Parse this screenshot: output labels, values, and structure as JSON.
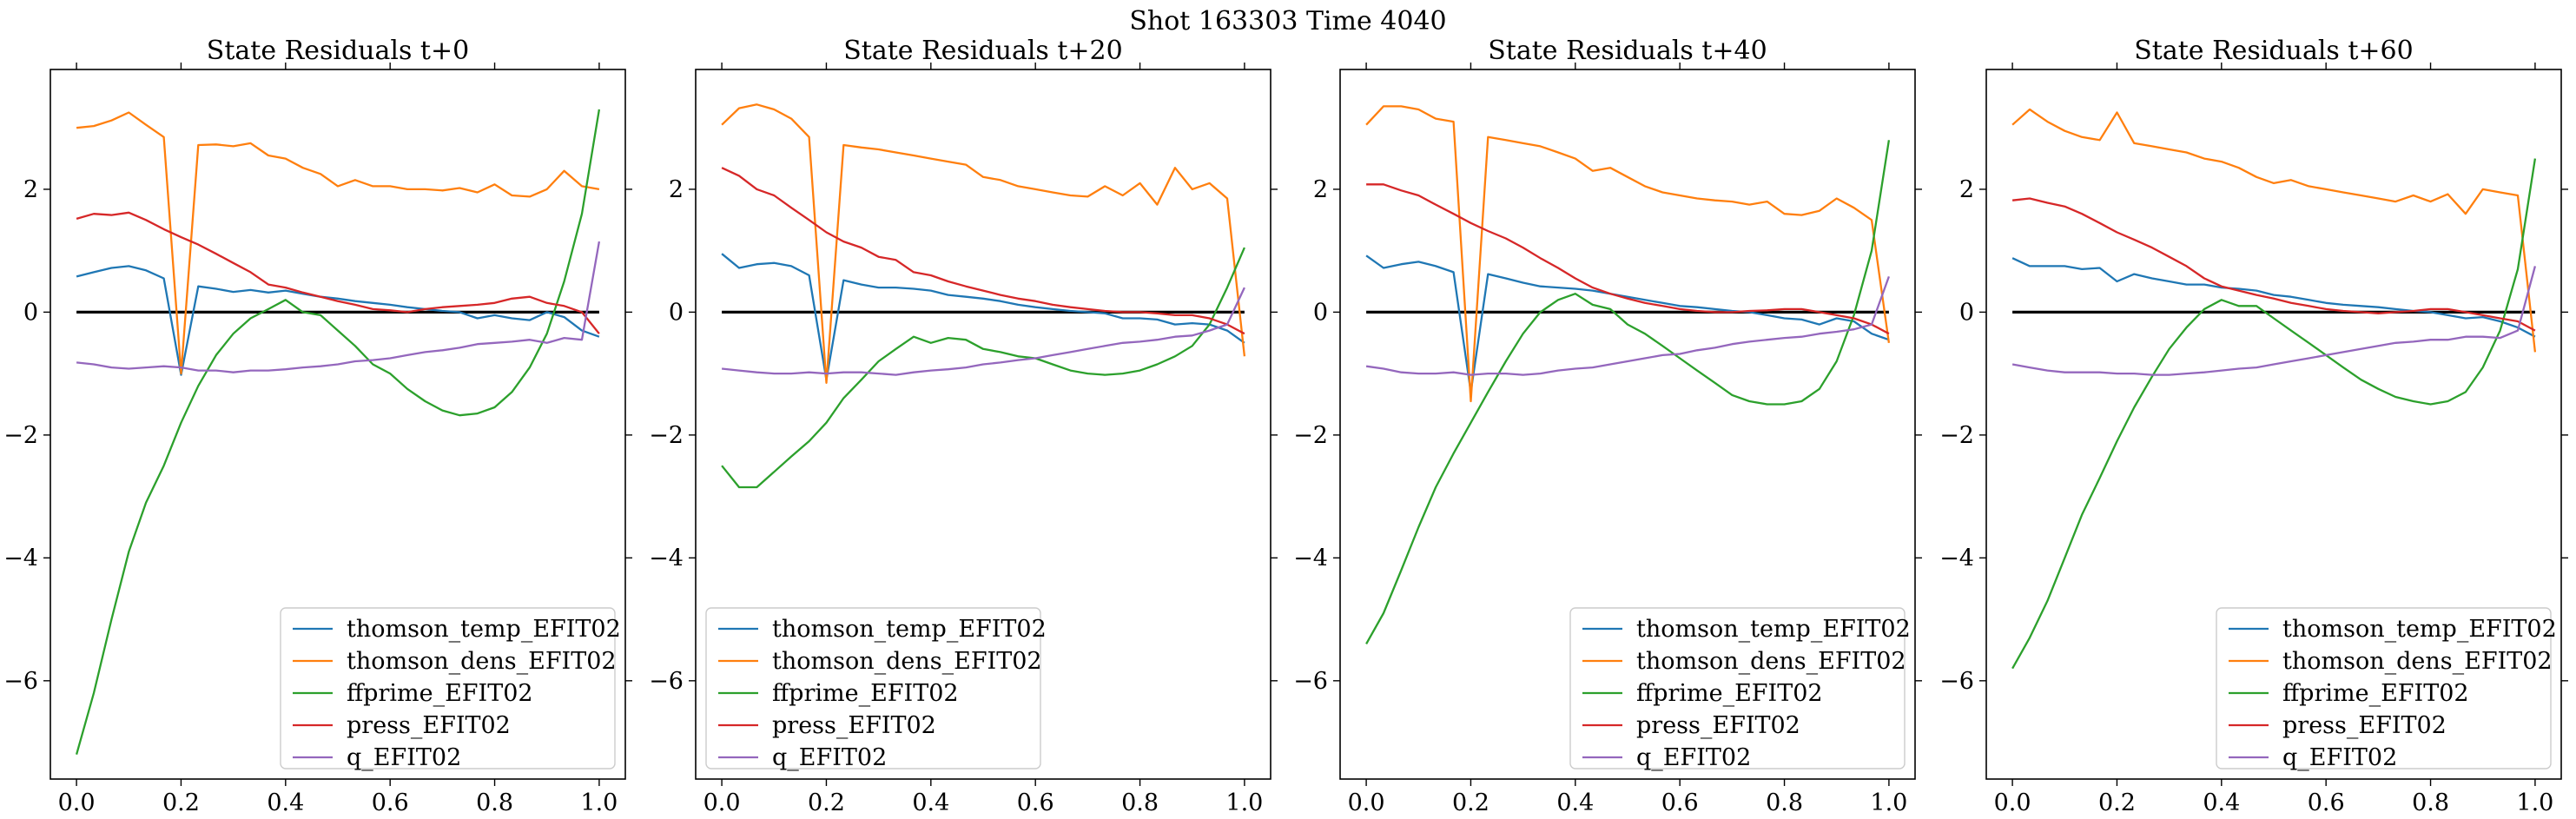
{
  "suptitle": "Shot 163303   Time 4040",
  "colors": {
    "thomson_temp_EFIT02": "#1f77b4",
    "thomson_dens_EFIT02": "#ff7f0e",
    "ffprime_EFIT02": "#2ca02c",
    "press_EFIT02": "#d62728",
    "q_EFIT02": "#9467bd",
    "zero_line": "#000000"
  },
  "chart_data": [
    {
      "type": "line",
      "title": "State Residuals t+0",
      "xlim": [
        -0.05,
        1.05
      ],
      "ylim": [
        -7.6,
        3.95
      ],
      "xticks": [
        0.0,
        0.2,
        0.4,
        0.6,
        0.8,
        1.0
      ],
      "xtick_labels": [
        "0.0",
        "0.2",
        "0.4",
        "0.6",
        "0.8",
        "1.0"
      ],
      "yticks": [
        -6,
        -4,
        -2,
        0,
        2
      ],
      "ytick_labels": [
        "−6",
        "−4",
        "−2",
        "0",
        "2"
      ],
      "legend_position": "lower-right",
      "hline": 0,
      "x": [
        0.0,
        0.033,
        0.067,
        0.1,
        0.133,
        0.167,
        0.2,
        0.233,
        0.267,
        0.3,
        0.333,
        0.367,
        0.4,
        0.433,
        0.467,
        0.5,
        0.533,
        0.567,
        0.6,
        0.633,
        0.667,
        0.7,
        0.733,
        0.767,
        0.8,
        0.833,
        0.867,
        0.9,
        0.933,
        0.967,
        1.0
      ],
      "series": [
        {
          "name": "thomson_temp_EFIT02",
          "values": [
            0.58,
            0.65,
            0.72,
            0.75,
            0.68,
            0.55,
            -1.02,
            0.42,
            0.38,
            0.33,
            0.36,
            0.32,
            0.35,
            0.3,
            0.25,
            0.22,
            0.18,
            0.15,
            0.12,
            0.08,
            0.05,
            0.02,
            0.0,
            -0.1,
            -0.05,
            -0.1,
            -0.13,
            0.0,
            -0.08,
            -0.3,
            -0.4
          ]
        },
        {
          "name": "thomson_dens_EFIT02",
          "values": [
            3.0,
            3.03,
            3.12,
            3.25,
            3.05,
            2.85,
            -1.0,
            2.72,
            2.73,
            2.7,
            2.75,
            2.55,
            2.5,
            2.35,
            2.25,
            2.05,
            2.15,
            2.05,
            2.05,
            2.0,
            2.0,
            1.98,
            2.02,
            1.95,
            2.08,
            1.9,
            1.88,
            2.0,
            2.3,
            2.05,
            2.0
          ]
        },
        {
          "name": "ffprime_EFIT02",
          "values": [
            -7.2,
            -6.2,
            -5.0,
            -3.9,
            -3.1,
            -2.5,
            -1.8,
            -1.2,
            -0.7,
            -0.35,
            -0.1,
            0.05,
            0.2,
            0.0,
            -0.05,
            -0.3,
            -0.55,
            -0.85,
            -1.0,
            -1.25,
            -1.45,
            -1.6,
            -1.68,
            -1.65,
            -1.55,
            -1.3,
            -0.9,
            -0.35,
            0.5,
            1.6,
            3.3
          ]
        },
        {
          "name": "press_EFIT02",
          "values": [
            1.52,
            1.6,
            1.58,
            1.62,
            1.5,
            1.35,
            1.22,
            1.1,
            0.95,
            0.8,
            0.65,
            0.45,
            0.4,
            0.32,
            0.25,
            0.18,
            0.12,
            0.05,
            0.03,
            0.0,
            0.05,
            0.08,
            0.1,
            0.12,
            0.15,
            0.22,
            0.25,
            0.15,
            0.1,
            0.0,
            -0.35
          ]
        },
        {
          "name": "q_EFIT02",
          "values": [
            -0.82,
            -0.85,
            -0.9,
            -0.92,
            -0.9,
            -0.88,
            -0.9,
            -0.95,
            -0.95,
            -0.98,
            -0.95,
            -0.95,
            -0.93,
            -0.9,
            -0.88,
            -0.85,
            -0.8,
            -0.78,
            -0.75,
            -0.7,
            -0.65,
            -0.62,
            -0.58,
            -0.52,
            -0.5,
            -0.48,
            -0.45,
            -0.5,
            -0.42,
            -0.45,
            1.15
          ]
        }
      ]
    },
    {
      "type": "line",
      "title": "State Residuals t+20",
      "xlim": [
        -0.05,
        1.05
      ],
      "ylim": [
        -7.6,
        3.95
      ],
      "xticks": [
        0.0,
        0.2,
        0.4,
        0.6,
        0.8,
        1.0
      ],
      "xtick_labels": [
        "0.0",
        "0.2",
        "0.4",
        "0.6",
        "0.8",
        "1.0"
      ],
      "yticks": [
        -6,
        -4,
        -2,
        0,
        2
      ],
      "ytick_labels": [
        "−6",
        "−4",
        "−2",
        "0",
        "2"
      ],
      "legend_position": "lower-left",
      "hline": 0,
      "x": [
        0.0,
        0.033,
        0.067,
        0.1,
        0.133,
        0.167,
        0.2,
        0.233,
        0.267,
        0.3,
        0.333,
        0.367,
        0.4,
        0.433,
        0.467,
        0.5,
        0.533,
        0.567,
        0.6,
        0.633,
        0.667,
        0.7,
        0.733,
        0.767,
        0.8,
        0.833,
        0.867,
        0.9,
        0.933,
        0.967,
        1.0
      ],
      "series": [
        {
          "name": "thomson_temp_EFIT02",
          "values": [
            0.95,
            0.72,
            0.78,
            0.8,
            0.75,
            0.6,
            -1.1,
            0.52,
            0.45,
            0.4,
            0.4,
            0.38,
            0.35,
            0.28,
            0.25,
            0.22,
            0.18,
            0.12,
            0.08,
            0.05,
            0.02,
            0.0,
            -0.02,
            -0.1,
            -0.1,
            -0.12,
            -0.2,
            -0.18,
            -0.2,
            -0.3,
            -0.5
          ]
        },
        {
          "name": "thomson_dens_EFIT02",
          "values": [
            3.05,
            3.32,
            3.38,
            3.3,
            3.15,
            2.85,
            -1.15,
            2.72,
            2.68,
            2.65,
            2.6,
            2.55,
            2.5,
            2.45,
            2.4,
            2.2,
            2.15,
            2.05,
            2.0,
            1.95,
            1.9,
            1.88,
            2.05,
            1.9,
            2.1,
            1.75,
            2.35,
            2.0,
            2.1,
            1.85,
            -0.72
          ]
        },
        {
          "name": "ffprime_EFIT02",
          "values": [
            -2.5,
            -2.85,
            -2.85,
            -2.6,
            -2.35,
            -2.1,
            -1.8,
            -1.4,
            -1.1,
            -0.8,
            -0.6,
            -0.4,
            -0.5,
            -0.42,
            -0.45,
            -0.6,
            -0.65,
            -0.72,
            -0.75,
            -0.85,
            -0.95,
            -1.0,
            -1.02,
            -1.0,
            -0.95,
            -0.85,
            -0.72,
            -0.55,
            -0.2,
            0.4,
            1.05
          ]
        },
        {
          "name": "press_EFIT02",
          "values": [
            2.35,
            2.22,
            2.0,
            1.9,
            1.7,
            1.5,
            1.3,
            1.15,
            1.05,
            0.9,
            0.85,
            0.65,
            0.6,
            0.5,
            0.42,
            0.35,
            0.28,
            0.22,
            0.18,
            0.12,
            0.08,
            0.05,
            0.02,
            0.0,
            0.0,
            -0.02,
            -0.05,
            -0.05,
            -0.1,
            -0.2,
            -0.35
          ]
        },
        {
          "name": "q_EFIT02",
          "values": [
            -0.92,
            -0.95,
            -0.98,
            -1.0,
            -1.0,
            -0.98,
            -1.0,
            -0.98,
            -0.98,
            -1.0,
            -1.02,
            -0.98,
            -0.95,
            -0.93,
            -0.9,
            -0.85,
            -0.82,
            -0.78,
            -0.75,
            -0.7,
            -0.65,
            -0.6,
            -0.55,
            -0.5,
            -0.48,
            -0.45,
            -0.4,
            -0.38,
            -0.3,
            -0.2,
            0.4
          ]
        }
      ]
    },
    {
      "type": "line",
      "title": "State Residuals t+40",
      "xlim": [
        -0.05,
        1.05
      ],
      "ylim": [
        -7.6,
        3.95
      ],
      "xticks": [
        0.0,
        0.2,
        0.4,
        0.6,
        0.8,
        1.0
      ],
      "xtick_labels": [
        "0.0",
        "0.2",
        "0.4",
        "0.6",
        "0.8",
        "1.0"
      ],
      "yticks": [
        -6,
        -4,
        -2,
        0,
        2
      ],
      "ytick_labels": [
        "−6",
        "−4",
        "−2",
        "0",
        "2"
      ],
      "legend_position": "lower-right",
      "hline": 0,
      "x": [
        0.0,
        0.033,
        0.067,
        0.1,
        0.133,
        0.167,
        0.2,
        0.233,
        0.267,
        0.3,
        0.333,
        0.367,
        0.4,
        0.433,
        0.467,
        0.5,
        0.533,
        0.567,
        0.6,
        0.633,
        0.667,
        0.7,
        0.733,
        0.767,
        0.8,
        0.833,
        0.867,
        0.9,
        0.933,
        0.967,
        1.0
      ],
      "series": [
        {
          "name": "thomson_temp_EFIT02",
          "values": [
            0.92,
            0.72,
            0.78,
            0.82,
            0.75,
            0.65,
            -1.3,
            0.62,
            0.55,
            0.48,
            0.42,
            0.4,
            0.38,
            0.35,
            0.3,
            0.25,
            0.2,
            0.15,
            0.1,
            0.08,
            0.05,
            0.02,
            0.0,
            -0.05,
            -0.1,
            -0.12,
            -0.2,
            -0.1,
            -0.15,
            -0.35,
            -0.45
          ]
        },
        {
          "name": "thomson_dens_EFIT02",
          "values": [
            3.05,
            3.35,
            3.35,
            3.3,
            3.15,
            3.1,
            -1.45,
            2.85,
            2.8,
            2.75,
            2.7,
            2.6,
            2.5,
            2.3,
            2.35,
            2.2,
            2.05,
            1.95,
            1.9,
            1.85,
            1.82,
            1.8,
            1.75,
            1.8,
            1.6,
            1.58,
            1.65,
            1.85,
            1.7,
            1.5,
            -0.5
          ]
        },
        {
          "name": "ffprime_EFIT02",
          "values": [
            -5.4,
            -4.9,
            -4.2,
            -3.5,
            -2.85,
            -2.3,
            -1.8,
            -1.3,
            -0.8,
            -0.35,
            0.0,
            0.2,
            0.3,
            0.12,
            0.05,
            -0.2,
            -0.35,
            -0.55,
            -0.75,
            -0.95,
            -1.15,
            -1.35,
            -1.45,
            -1.5,
            -1.5,
            -1.45,
            -1.25,
            -0.8,
            -0.05,
            1.0,
            2.8
          ]
        },
        {
          "name": "press_EFIT02",
          "values": [
            2.08,
            2.08,
            1.98,
            1.9,
            1.75,
            1.6,
            1.45,
            1.32,
            1.2,
            1.05,
            0.88,
            0.72,
            0.55,
            0.4,
            0.3,
            0.22,
            0.15,
            0.1,
            0.05,
            0.02,
            0.0,
            0.0,
            0.02,
            0.03,
            0.05,
            0.05,
            0.0,
            -0.05,
            -0.1,
            -0.2,
            -0.35
          ]
        },
        {
          "name": "q_EFIT02",
          "values": [
            -0.88,
            -0.92,
            -0.98,
            -1.0,
            -1.0,
            -0.98,
            -1.02,
            -1.0,
            -1.0,
            -1.02,
            -1.0,
            -0.95,
            -0.92,
            -0.9,
            -0.85,
            -0.8,
            -0.75,
            -0.7,
            -0.68,
            -0.62,
            -0.58,
            -0.52,
            -0.48,
            -0.45,
            -0.42,
            -0.4,
            -0.35,
            -0.32,
            -0.28,
            -0.2,
            0.58
          ]
        }
      ]
    },
    {
      "type": "line",
      "title": "State Residuals t+60",
      "xlim": [
        -0.05,
        1.05
      ],
      "ylim": [
        -7.6,
        3.95
      ],
      "xticks": [
        0.0,
        0.2,
        0.4,
        0.6,
        0.8,
        1.0
      ],
      "xtick_labels": [
        "0.0",
        "0.2",
        "0.4",
        "0.6",
        "0.8",
        "1.0"
      ],
      "yticks": [
        -6,
        -4,
        -2,
        0,
        2
      ],
      "ytick_labels": [
        "−6",
        "−4",
        "−2",
        "0",
        "2"
      ],
      "legend_position": "lower-right",
      "hline": 0,
      "x": [
        0.0,
        0.033,
        0.067,
        0.1,
        0.133,
        0.167,
        0.2,
        0.233,
        0.267,
        0.3,
        0.333,
        0.367,
        0.4,
        0.433,
        0.467,
        0.5,
        0.533,
        0.567,
        0.6,
        0.633,
        0.667,
        0.7,
        0.733,
        0.767,
        0.8,
        0.833,
        0.867,
        0.9,
        0.933,
        0.967,
        1.0
      ],
      "series": [
        {
          "name": "thomson_temp_EFIT02",
          "values": [
            0.88,
            0.75,
            0.75,
            0.75,
            0.7,
            0.72,
            0.5,
            0.62,
            0.55,
            0.5,
            0.45,
            0.45,
            0.4,
            0.38,
            0.35,
            0.28,
            0.25,
            0.2,
            0.15,
            0.12,
            0.1,
            0.08,
            0.05,
            0.02,
            0.0,
            -0.05,
            -0.1,
            -0.08,
            -0.15,
            -0.25,
            -0.4
          ]
        },
        {
          "name": "thomson_dens_EFIT02",
          "values": [
            3.05,
            3.3,
            3.1,
            2.95,
            2.85,
            2.8,
            3.25,
            2.75,
            2.7,
            2.65,
            2.6,
            2.5,
            2.45,
            2.35,
            2.2,
            2.1,
            2.15,
            2.05,
            2.0,
            1.95,
            1.9,
            1.85,
            1.8,
            1.9,
            1.8,
            1.92,
            1.6,
            2.0,
            1.95,
            1.9,
            -0.65
          ]
        },
        {
          "name": "ffprime_EFIT02",
          "values": [
            -5.8,
            -5.3,
            -4.7,
            -4.0,
            -3.3,
            -2.7,
            -2.1,
            -1.55,
            -1.05,
            -0.6,
            -0.25,
            0.05,
            0.2,
            0.1,
            0.1,
            -0.1,
            -0.3,
            -0.5,
            -0.7,
            -0.9,
            -1.1,
            -1.25,
            -1.38,
            -1.45,
            -1.5,
            -1.45,
            -1.3,
            -0.9,
            -0.3,
            0.7,
            2.5
          ]
        },
        {
          "name": "press_EFIT02",
          "values": [
            1.82,
            1.85,
            1.78,
            1.72,
            1.6,
            1.45,
            1.3,
            1.18,
            1.05,
            0.9,
            0.75,
            0.55,
            0.42,
            0.35,
            0.28,
            0.22,
            0.15,
            0.1,
            0.05,
            0.02,
            0.0,
            -0.02,
            0.0,
            0.02,
            0.05,
            0.05,
            0.0,
            -0.05,
            -0.1,
            -0.15,
            -0.3
          ]
        },
        {
          "name": "q_EFIT02",
          "values": [
            -0.85,
            -0.9,
            -0.95,
            -0.98,
            -0.98,
            -0.98,
            -1.0,
            -1.0,
            -1.02,
            -1.02,
            -1.0,
            -0.98,
            -0.95,
            -0.92,
            -0.9,
            -0.85,
            -0.8,
            -0.75,
            -0.7,
            -0.65,
            -0.6,
            -0.55,
            -0.5,
            -0.48,
            -0.45,
            -0.45,
            -0.4,
            -0.4,
            -0.42,
            -0.3,
            0.75
          ]
        }
      ]
    }
  ]
}
